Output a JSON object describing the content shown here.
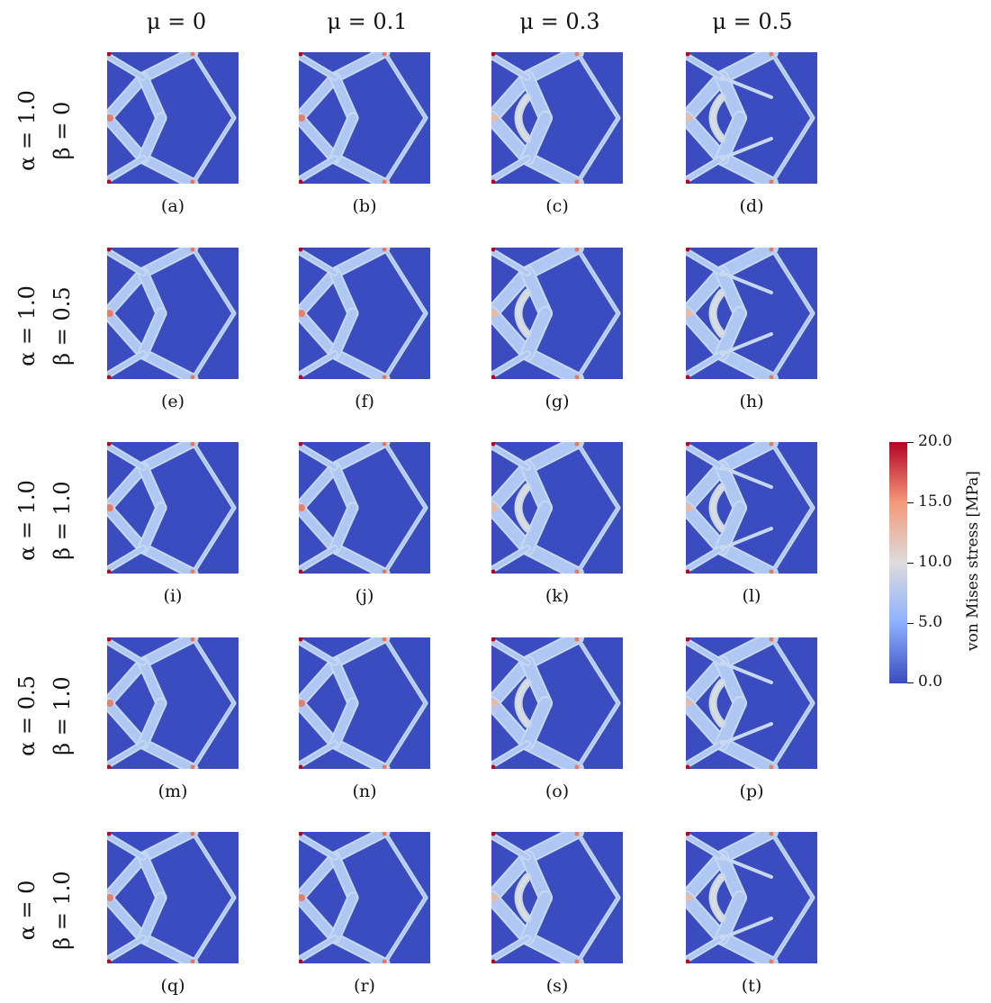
{
  "column_headers": [
    "μ = 0",
    "μ = 0.1",
    "μ = 0.3",
    "μ = 0.5"
  ],
  "rows": [
    {
      "alpha": "α = 1.0",
      "beta": "β = 0"
    },
    {
      "alpha": "α = 1.0",
      "beta": "β = 0.5"
    },
    {
      "alpha": "α = 1.0",
      "beta": "β = 1.0"
    },
    {
      "alpha": "α = 0.5",
      "beta": "β = 1.0"
    },
    {
      "alpha": "α = 0",
      "beta": "β = 1.0"
    }
  ],
  "captions": [
    "(a)",
    "(b)",
    "(c)",
    "(d)",
    "(e)",
    "(f)",
    "(g)",
    "(h)",
    "(i)",
    "(j)",
    "(k)",
    "(l)",
    "(m)",
    "(n)",
    "(o)",
    "(p)",
    "(q)",
    "(r)",
    "(s)",
    "(t)"
  ],
  "colorbar": {
    "title": "von Mises stress [MPa]",
    "ticks": [
      "20.0",
      "15.0",
      "10.0",
      "5.0",
      "0.0"
    ],
    "min": 0.0,
    "max": 20.0,
    "colors": [
      "#b40426",
      "#f4987a",
      "#dddcdc",
      "#8db0fe",
      "#3b4cc0"
    ]
  },
  "background_color": "#3b4cc0"
}
